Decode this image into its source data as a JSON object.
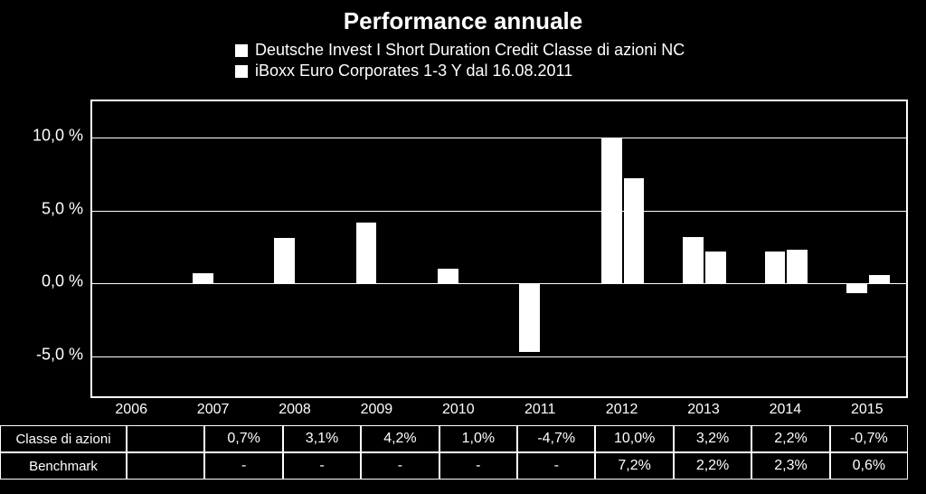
{
  "chart": {
    "type": "bar",
    "title": "Performance annuale",
    "title_fontsize": 26,
    "background_color": "#000000",
    "text_color": "#ffffff",
    "bar_color": "#ffffff",
    "border_color": "#ffffff",
    "legend": {
      "items": [
        {
          "swatch_color": "#ffffff",
          "label": "Deutsche Invest I Short Duration Credit Classe di azioni NC"
        },
        {
          "swatch_color": "#ffffff",
          "label": "iBoxx Euro Corporates 1-3 Y dal 16.08.2011"
        }
      ]
    },
    "x": {
      "categories": [
        "2006",
        "2007",
        "2008",
        "2009",
        "2010",
        "2011",
        "2012",
        "2013",
        "2014",
        "2015"
      ]
    },
    "y": {
      "min": -8.0,
      "max": 12.5,
      "ticks": [
        -5.0,
        0.0,
        5.0,
        10.0
      ],
      "tick_labels": [
        "-5,0 %",
        "0,0 %",
        "5,0 %",
        "10,0 %"
      ],
      "label_fontsize": 18
    },
    "series": [
      {
        "name": "Classe di azioni",
        "color": "#ffffff",
        "values": [
          null,
          0.7,
          3.1,
          4.2,
          1.0,
          -4.7,
          10.0,
          3.2,
          2.2,
          -0.7
        ]
      },
      {
        "name": "Benchmark",
        "color": "#ffffff",
        "values": [
          null,
          null,
          null,
          null,
          null,
          null,
          7.2,
          2.2,
          2.3,
          0.6
        ]
      }
    ],
    "bar_group_width_ratio": 0.55
  },
  "table": {
    "row_headers": [
      "Classe di azioni",
      "Benchmark"
    ],
    "columns": [
      "2006",
      "2007",
      "2008",
      "2009",
      "2010",
      "2011",
      "2012",
      "2013",
      "2014",
      "2015"
    ],
    "rows": [
      [
        "",
        "0,7%",
        "3,1%",
        "4,2%",
        "1,0%",
        "-4,7%",
        "10,0%",
        "3,2%",
        "2,2%",
        "-0,7%"
      ],
      [
        "",
        "-",
        "-",
        "-",
        "-",
        "-",
        "7,2%",
        "2,2%",
        "2,3%",
        "0,6%"
      ]
    ],
    "border_color": "#ffffff",
    "font_size": 16
  }
}
